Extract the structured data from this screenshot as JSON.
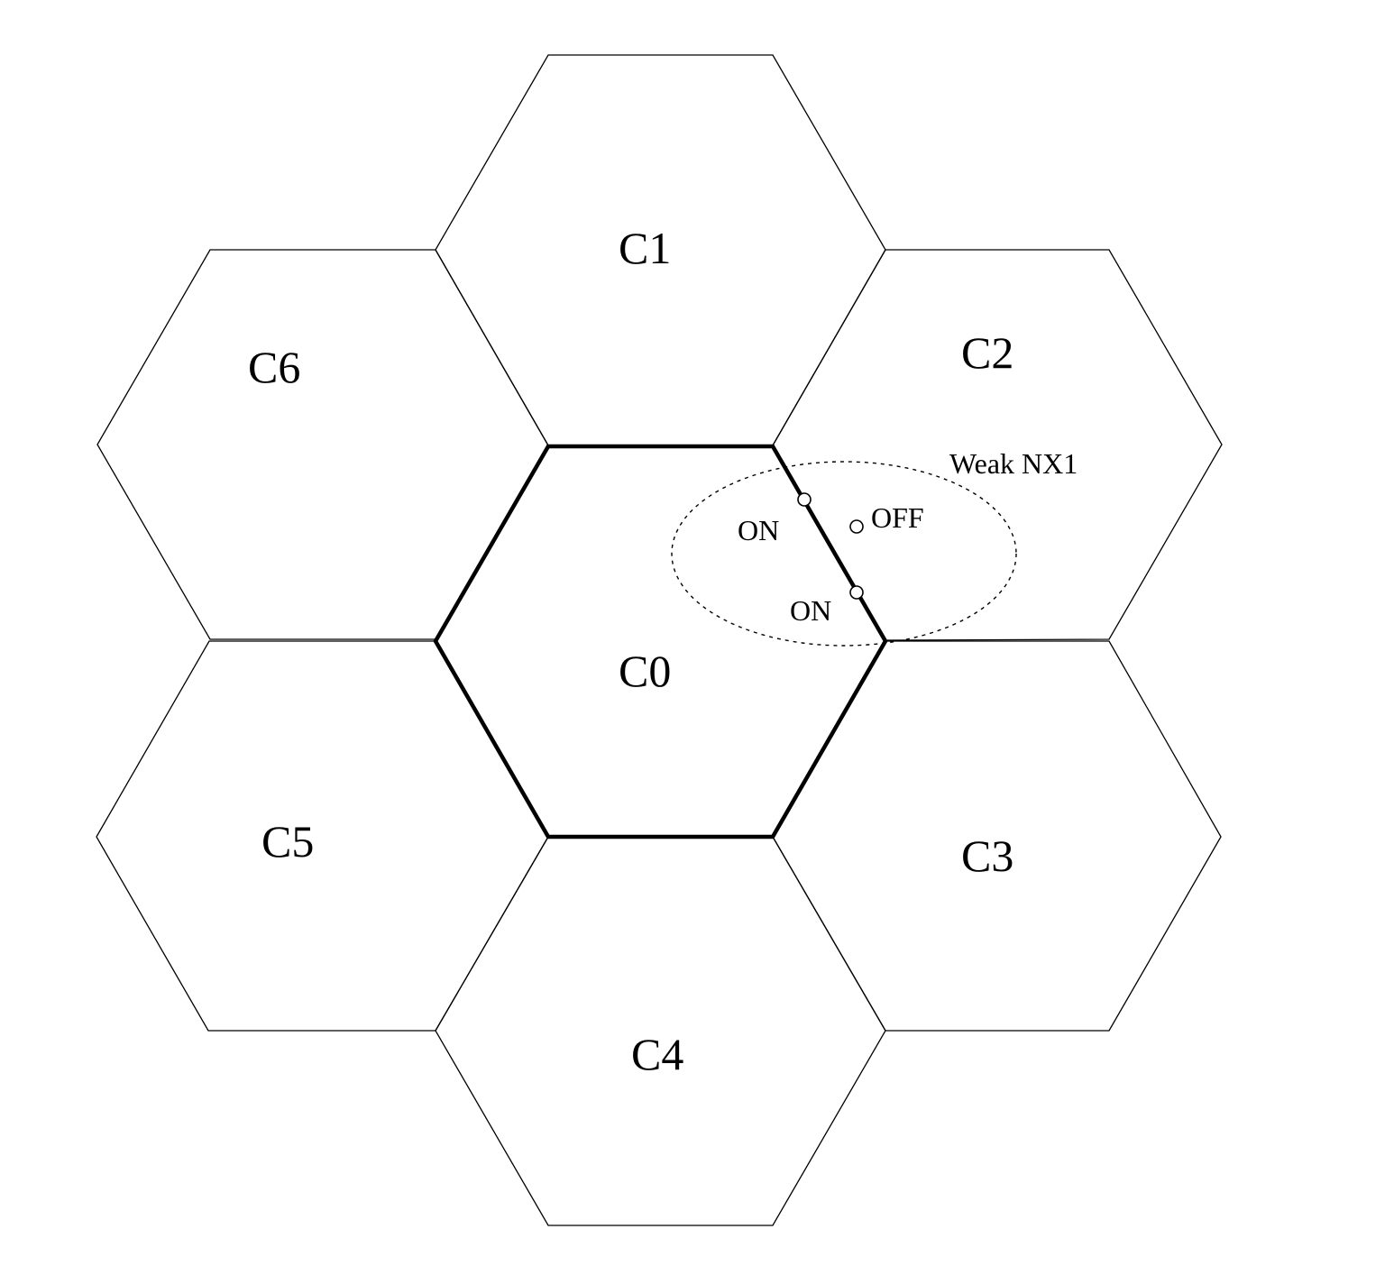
{
  "cells": {
    "c0": "C0",
    "c1": "C1",
    "c2": "C2",
    "c3": "C3",
    "c4": "C4",
    "c5": "C5",
    "c6": "C6"
  },
  "weak_region": {
    "label": "Weak NX1"
  },
  "nodes": {
    "on_top": "ON",
    "off": "OFF",
    "on_bottom": "ON"
  }
}
